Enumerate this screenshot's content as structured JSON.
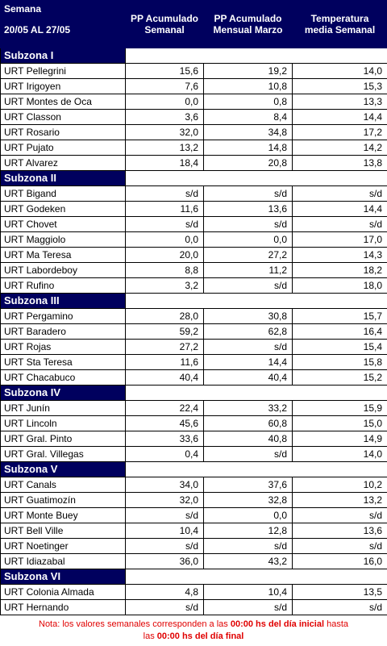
{
  "header": {
    "title": "Semana",
    "period": "20/05 AL 27/05",
    "columns": [
      "PP Acumulado Semanal",
      "PP Acumulado Mensual Marzo",
      "Temperatura media Semanal"
    ]
  },
  "subzones": [
    {
      "name": "Subzona I",
      "rows": [
        [
          "URT Pellegrini",
          "15,6",
          "19,2",
          "14,0"
        ],
        [
          "URT Irigoyen",
          "7,6",
          "10,8",
          "15,3"
        ],
        [
          "URT Montes de Oca",
          "0,0",
          "0,8",
          "13,3"
        ],
        [
          "URT Classon",
          "3,6",
          "8,4",
          "14,4"
        ],
        [
          "URT Rosario",
          "32,0",
          "34,8",
          "17,2"
        ],
        [
          "URT Pujato",
          "13,2",
          "14,8",
          "14,2"
        ],
        [
          "URT Alvarez",
          "18,4",
          "20,8",
          "13,8"
        ]
      ]
    },
    {
      "name": "Subzona II",
      "rows": [
        [
          "URT Bigand",
          "s/d",
          "s/d",
          "s/d"
        ],
        [
          "URT Godeken",
          "11,6",
          "13,6",
          "14,4"
        ],
        [
          "URT Chovet",
          "s/d",
          "s/d",
          "s/d"
        ],
        [
          "URT Maggiolo",
          "0,0",
          "0,0",
          "17,0"
        ],
        [
          "URT Ma Teresa",
          "20,0",
          "27,2",
          "14,3"
        ],
        [
          "URT Labordeboy",
          "8,8",
          "11,2",
          "18,2"
        ],
        [
          "URT Rufino",
          "3,2",
          "s/d",
          "18,0"
        ]
      ]
    },
    {
      "name": "Subzona III",
      "rows": [
        [
          "URT Pergamino",
          "28,0",
          "30,8",
          "15,7"
        ],
        [
          "URT Baradero",
          "59,2",
          "62,8",
          "16,4"
        ],
        [
          "URT Rojas",
          "27,2",
          "s/d",
          "15,4"
        ],
        [
          "URT Sta Teresa",
          "11,6",
          "14,4",
          "15,8"
        ],
        [
          "URT Chacabuco",
          "40,4",
          "40,4",
          "15,2"
        ]
      ]
    },
    {
      "name": "Subzona IV",
      "rows": [
        [
          "URT Junín",
          "22,4",
          "33,2",
          "15,9"
        ],
        [
          "URT Lincoln",
          "45,6",
          "60,8",
          "15,0"
        ],
        [
          "URT Gral. Pinto",
          "33,6",
          "40,8",
          "14,9"
        ],
        [
          "URT Gral. Villegas",
          "0,4",
          "s/d",
          "14,0"
        ]
      ]
    },
    {
      "name": "Subzona V",
      "rows": [
        [
          "URT Canals",
          "34,0",
          "37,6",
          "10,2"
        ],
        [
          "URT Guatimozín",
          "32,0",
          "32,8",
          "13,2"
        ],
        [
          "URT Monte Buey",
          "s/d",
          "0,0",
          "s/d"
        ],
        [
          "URT Bell Ville",
          "10,4",
          "12,8",
          "13,6"
        ],
        [
          "URT Noetinger",
          "s/d",
          "s/d",
          "s/d"
        ],
        [
          "URT Idiazabal",
          "36,0",
          "43,2",
          "16,0"
        ]
      ]
    },
    {
      "name": "Subzona VI",
      "rows": [
        [
          "URT Colonia Almada",
          "4,8",
          "10,4",
          "13,5"
        ],
        [
          "URT Hernando",
          "s/d",
          "s/d",
          "s/d"
        ]
      ]
    }
  ],
  "note": [
    "Nota: los valores semanales corresponden a las ",
    "00:00 hs  del día inicial",
    " hasta",
    "las ",
    "00:00 hs  del día final"
  ]
}
